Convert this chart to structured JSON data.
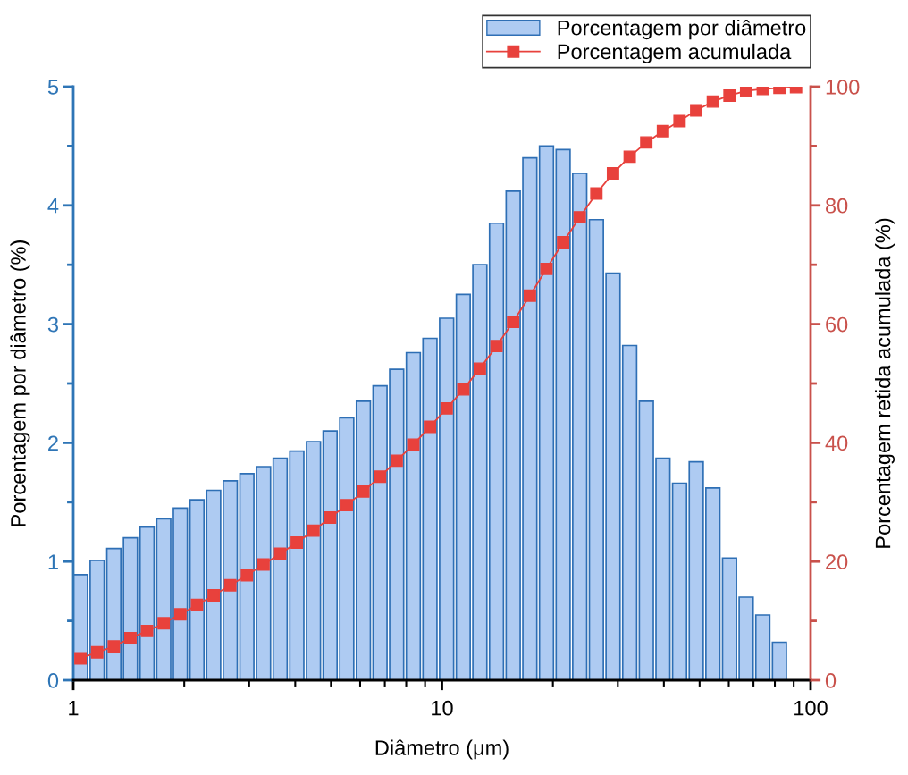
{
  "chart_data": {
    "type": "histogram",
    "xlabel": "Diâmetro (μm)",
    "ylabel": "Porcentagem por diâmetro (%)",
    "y2label": "Porcentagem retida acumulada (%)",
    "log": "x",
    "xlim": [
      1,
      100
    ],
    "xticks": [
      1,
      10,
      100
    ],
    "ylim": [
      0,
      5
    ],
    "yticks": [
      0,
      1,
      2,
      3,
      4,
      5
    ],
    "y2lim": [
      0,
      100
    ],
    "y2ticks": [
      0,
      20,
      40,
      60,
      80,
      100
    ],
    "bins": [
      0.993,
      1.102,
      1.223,
      1.357,
      1.505,
      1.67,
      1.853,
      2.056,
      2.281,
      2.531,
      2.808,
      3.115,
      3.457,
      3.835,
      4.256,
      4.722,
      5.239,
      5.813,
      6.45,
      7.156,
      7.94,
      8.81,
      9.775,
      10.85,
      12.03,
      13.35,
      14.81,
      16.44,
      18.24,
      20.24,
      22.45,
      24.91,
      27.64,
      30.67,
      34.03,
      37.76,
      41.88,
      46.48,
      51.57,
      57.22,
      63.49,
      70.44,
      78.16,
      86.7
    ],
    "series": [
      {
        "name": "Porcentagem por diâmetro",
        "color": "#aecbf2",
        "values": [
          0.89,
          1.01,
          1.11,
          1.2,
          1.29,
          1.36,
          1.45,
          1.52,
          1.6,
          1.68,
          1.74,
          1.8,
          1.87,
          1.93,
          2.01,
          2.1,
          2.21,
          2.35,
          2.48,
          2.62,
          2.76,
          2.88,
          3.05,
          3.25,
          3.5,
          3.85,
          4.12,
          4.4,
          4.5,
          4.47,
          4.27,
          3.88,
          3.43,
          2.82,
          2.35,
          1.87,
          1.66,
          1.84,
          1.62,
          1.03,
          0.7,
          0.55,
          0.32
        ]
      },
      {
        "name": "Porcentagem acumulada",
        "type": "line",
        "axis": "y2",
        "color": "#e8413c",
        "marker": "square",
        "x": [
          1.046,
          1.161,
          1.288,
          1.429,
          1.585,
          1.759,
          1.952,
          2.166,
          2.403,
          2.666,
          2.958,
          3.281,
          3.641,
          4.039,
          4.483,
          4.974,
          5.518,
          6.123,
          6.794,
          7.537,
          8.363,
          9.28,
          10.3,
          11.43,
          12.67,
          14.06,
          15.6,
          17.32,
          19.21,
          21.32,
          23.65,
          26.24,
          29.11,
          32.31,
          35.84,
          39.77,
          44.11,
          48.96,
          54.32,
          60.27,
          66.87,
          74.2,
          82.33,
          91.32
        ],
        "values": [
          3.7,
          4.7,
          5.7,
          7.1,
          8.3,
          9.6,
          11.1,
          12.7,
          14.3,
          16.0,
          17.7,
          19.5,
          21.3,
          23.2,
          25.2,
          27.4,
          29.5,
          31.8,
          34.3,
          37.0,
          39.7,
          42.7,
          45.8,
          49.0,
          52.5,
          56.3,
          60.4,
          64.8,
          69.3,
          73.8,
          78.0,
          82.0,
          85.4,
          88.2,
          90.6,
          92.5,
          94.2,
          96.0,
          97.5,
          98.5,
          99.3,
          99.6,
          99.8,
          99.9
        ]
      }
    ],
    "legend": "top right"
  }
}
